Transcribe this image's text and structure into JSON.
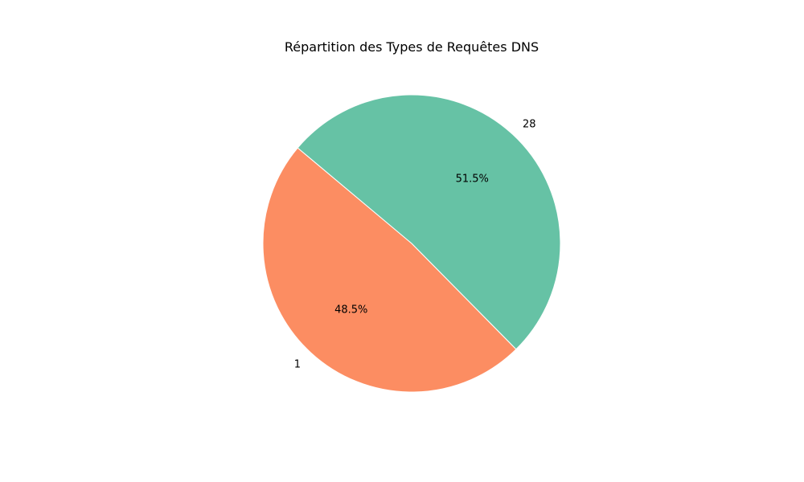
{
  "chart_data": {
    "type": "pie",
    "title": "Répartition des Types de Requêtes DNS",
    "slices": [
      {
        "label": "1",
        "percent": 48.5,
        "percent_label": "48.5%",
        "color": "#fc8d62"
      },
      {
        "label": "28",
        "percent": 51.5,
        "percent_label": "51.5%",
        "color": "#66c2a5"
      }
    ],
    "start_angle_deg": 140,
    "direction": "counterclockwise",
    "legend": "none"
  }
}
